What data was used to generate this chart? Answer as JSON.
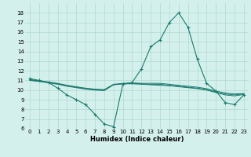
{
  "x": [
    0,
    1,
    2,
    3,
    4,
    5,
    6,
    7,
    8,
    9,
    10,
    11,
    12,
    13,
    14,
    15,
    16,
    17,
    18,
    19,
    20,
    21,
    22,
    23
  ],
  "line1": [
    11.2,
    11.0,
    10.8,
    10.2,
    9.5,
    9.0,
    8.5,
    7.5,
    6.5,
    6.2,
    10.6,
    10.8,
    12.2,
    14.5,
    15.2,
    17.0,
    18.0,
    16.5,
    13.2,
    10.7,
    9.9,
    8.7,
    8.5,
    9.5
  ],
  "line2": [
    11.0,
    10.9,
    10.75,
    10.6,
    10.4,
    10.25,
    10.1,
    10.0,
    9.95,
    10.55,
    10.65,
    10.65,
    10.6,
    10.55,
    10.5,
    10.45,
    10.35,
    10.25,
    10.15,
    10.0,
    9.75,
    9.5,
    9.4,
    9.55
  ],
  "line3": [
    11.05,
    10.9,
    10.8,
    10.65,
    10.45,
    10.3,
    10.15,
    10.05,
    10.0,
    10.55,
    10.65,
    10.7,
    10.65,
    10.6,
    10.6,
    10.5,
    10.4,
    10.3,
    10.2,
    10.05,
    9.8,
    9.6,
    9.5,
    9.6
  ],
  "line4": [
    11.1,
    10.95,
    10.85,
    10.7,
    10.5,
    10.35,
    10.2,
    10.1,
    10.05,
    10.6,
    10.7,
    10.75,
    10.7,
    10.7,
    10.7,
    10.6,
    10.5,
    10.4,
    10.3,
    10.15,
    9.9,
    9.7,
    9.6,
    9.65
  ],
  "line_color": "#1a7a6e",
  "bg_color": "#d4f0ec",
  "grid_color": "#b0d8d0",
  "xlabel": "Humidex (Indice chaleur)",
  "ylim": [
    6,
    19
  ],
  "xlim": [
    -0.5,
    23.5
  ],
  "yticks": [
    6,
    7,
    8,
    9,
    10,
    11,
    12,
    13,
    14,
    15,
    16,
    17,
    18
  ],
  "xticks": [
    0,
    1,
    2,
    3,
    4,
    5,
    6,
    7,
    8,
    9,
    10,
    11,
    12,
    13,
    14,
    15,
    16,
    17,
    18,
    19,
    20,
    21,
    22,
    23
  ]
}
